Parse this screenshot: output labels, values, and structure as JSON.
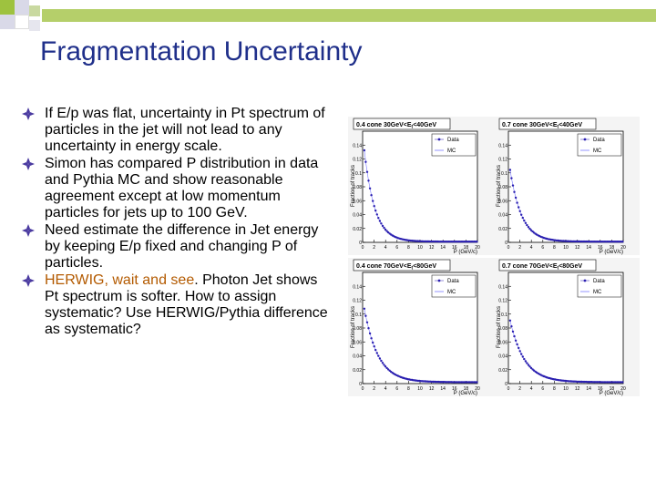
{
  "slide": {
    "title": "Fragmentation Uncertainty",
    "bullets": [
      {
        "text": "If E/p was flat, uncertainty in Pt spectrum of particles in the jet will not lead to any uncertainty in energy scale."
      },
      {
        "text": "Simon has compared P distribution in data and Pythia MC and show reasonable agreement except at low momentum particles  for jets up to 100 GeV."
      },
      {
        "text": "Need estimate the difference in Jet energy by keeping E/p fixed and changing P of particles."
      },
      {
        "highlight": "HERWIG, wait and see",
        "text": ". Photon Jet shows Pt spectrum is softer. How to assign systematic? Use HERWIG/Pythia difference as systematic?"
      }
    ]
  },
  "colors": {
    "title": "#1f2f8a",
    "bullet_icon": "#4a3aa0",
    "highlight": "#b35a00",
    "band_green": "#b5cf6a",
    "data_marker": "#2a1fb0",
    "mc_line": "#7a7aff"
  },
  "chart_data": [
    {
      "type": "scatter",
      "title": "0.4 cone 30GeV<Et<40GeV",
      "title_main": "0.4 cone 30GeV<E",
      "title_sub": "t",
      "title_tail": "<40GeV",
      "ylabel": "Fraction of tracks",
      "xlabel": "P (GeV/c)",
      "xlim": [
        0,
        20
      ],
      "ylim": [
        0,
        0.16
      ],
      "xticks": [
        "0",
        "2",
        "4",
        "6",
        "8",
        "10",
        "12",
        "14",
        "16",
        "18",
        "20"
      ],
      "yticks": [
        "0",
        "0.02",
        "0.04",
        "0.06",
        "0.08",
        "0.1",
        "0.12",
        "0.14"
      ],
      "legend": [
        "Data",
        "MC"
      ],
      "series": [
        {
          "name": "Data",
          "amplitude": 0.155,
          "decay": 0.55,
          "floor": 0.001
        }
      ]
    },
    {
      "type": "scatter",
      "title": "0.7 cone 30GeV<Et<40GeV",
      "title_main": "0.7 cone 30GeV<E",
      "title_sub": "t",
      "title_tail": "<40GeV",
      "ylabel": "Fraction of tracks",
      "xlabel": "P (GeV/c)",
      "xlim": [
        0,
        20
      ],
      "ylim": [
        0,
        0.16
      ],
      "xticks": [
        "0",
        "2",
        "4",
        "6",
        "8",
        "10",
        "12",
        "14",
        "16",
        "18",
        "20"
      ],
      "yticks": [
        "0",
        "0.02",
        "0.04",
        "0.06",
        "0.08",
        "0.1",
        "0.12",
        "0.14"
      ],
      "legend": [
        "Data",
        "MC"
      ],
      "series": [
        {
          "name": "Data",
          "amplitude": 0.12,
          "decay": 0.5,
          "floor": 0.001
        }
      ]
    },
    {
      "type": "scatter",
      "title": "0.4 cone 70GeV<Et<80GeV",
      "title_main": "0.4 cone 70GeV<E",
      "title_sub": "t",
      "title_tail": "<80GeV",
      "ylabel": "Fraction of tracks",
      "xlabel": "P (GeV/c)",
      "xlim": [
        0,
        20
      ],
      "ylim": [
        0,
        0.16
      ],
      "xticks": [
        "0",
        "2",
        "4",
        "6",
        "8",
        "10",
        "12",
        "14",
        "16",
        "18",
        "20"
      ],
      "yticks": [
        "0",
        "0.02",
        "0.04",
        "0.06",
        "0.08",
        "0.1",
        "0.12",
        "0.14"
      ],
      "legend": [
        "Data",
        "MC"
      ],
      "series": [
        {
          "name": "Data",
          "amplitude": 0.12,
          "decay": 0.42,
          "floor": 0.002
        }
      ]
    },
    {
      "type": "scatter",
      "title": "0.7 cone 70GeV<Et<80GeV",
      "title_main": "0.7 cone 70GeV<E",
      "title_sub": "t",
      "title_tail": "<80GeV",
      "ylabel": "Fraction of tracks",
      "xlabel": "P (GeV/c)",
      "xlim": [
        0,
        20
      ],
      "ylim": [
        0,
        0.16
      ],
      "xticks": [
        "0",
        "2",
        "4",
        "6",
        "8",
        "10",
        "12",
        "14",
        "16",
        "18",
        "20"
      ],
      "yticks": [
        "0",
        "0.02",
        "0.04",
        "0.06",
        "0.08",
        "0.1",
        "0.12",
        "0.14"
      ],
      "legend": [
        "Data",
        "MC"
      ],
      "series": [
        {
          "name": "Data",
          "amplitude": 0.1,
          "decay": 0.4,
          "floor": 0.002
        }
      ]
    }
  ]
}
